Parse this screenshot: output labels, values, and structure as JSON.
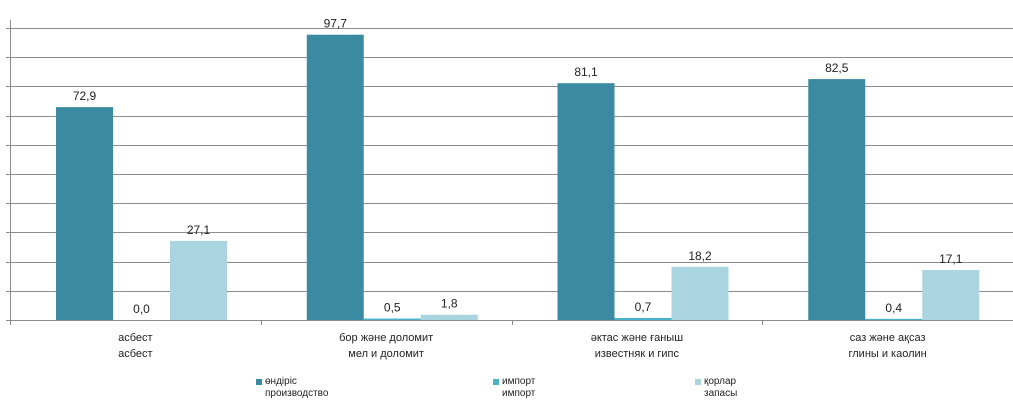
{
  "chart_data": {
    "type": "bar",
    "categories": [
      {
        "line1": "асбест",
        "line2": "асбест"
      },
      {
        "line1": "бор және доломит",
        "line2": "мел и доломит"
      },
      {
        "line1": "әктас және ғаныш",
        "line2": "известняк  и гипс"
      },
      {
        "line1": "саз және ақсаз",
        "line2": "глины  и каолин"
      }
    ],
    "series": [
      {
        "name_kz": "өндіріс",
        "name_ru": "производство",
        "color": "#3A8BA1",
        "values": [
          72.9,
          97.7,
          81.1,
          82.5
        ],
        "labels": [
          "72,9",
          "97,7",
          "81,1",
          "82,5"
        ]
      },
      {
        "name_kz": "импорт",
        "name_ru": "импорт",
        "color": "#4BB3C6",
        "values": [
          0.0,
          0.5,
          0.7,
          0.4
        ],
        "labels": [
          "0,0",
          "0,5",
          "0,7",
          "0,4"
        ]
      },
      {
        "name_kz": "қорлар",
        "name_ru": "запасы",
        "color": "#A9D4E0",
        "values": [
          27.1,
          1.8,
          18.2,
          17.1
        ],
        "labels": [
          "27,1",
          "1,8",
          "18,2",
          "17,1"
        ]
      }
    ],
    "ylim": [
      0,
      100
    ],
    "grid": true,
    "legend_position": "bottom"
  }
}
